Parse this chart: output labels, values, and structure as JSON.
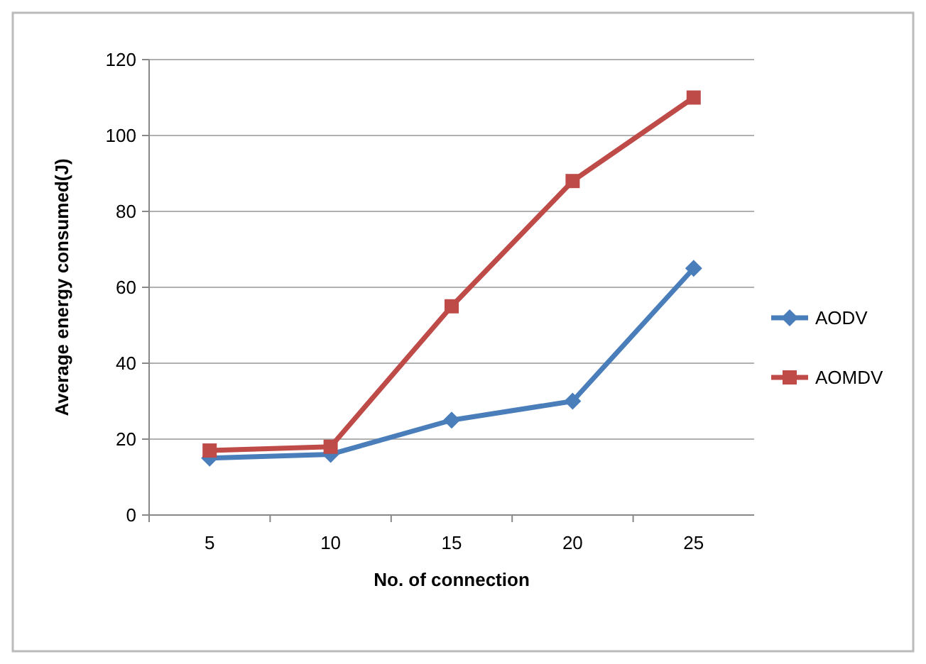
{
  "chart_data": {
    "type": "line",
    "xlabel": "No. of connection",
    "ylabel": "Average energy consumed(J)",
    "categories": [
      "5",
      "10",
      "15",
      "20",
      "25"
    ],
    "series": [
      {
        "name": "AODV",
        "color": "#4a7ebb",
        "values": [
          15,
          16,
          25,
          30,
          65
        ],
        "marker": "diamond"
      },
      {
        "name": "AOMDV",
        "color": "#be4b48",
        "values": [
          17,
          18,
          55,
          88,
          110
        ],
        "marker": "square"
      }
    ],
    "ylim": [
      0,
      120
    ],
    "yticks": [
      0,
      20,
      40,
      60,
      80,
      100,
      120
    ],
    "grid": "y",
    "legend": "right",
    "line_style": "solid"
  }
}
